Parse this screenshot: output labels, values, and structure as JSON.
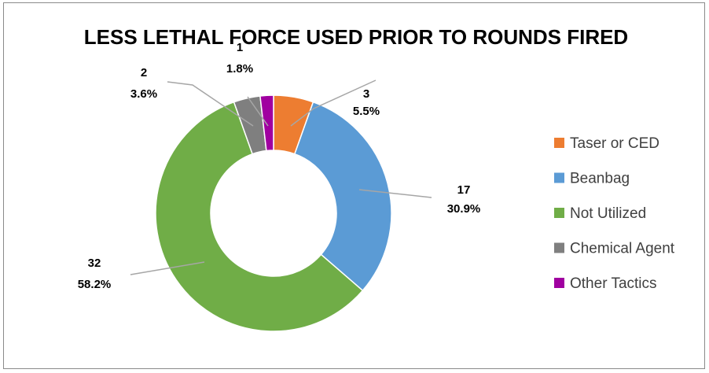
{
  "chart_data": {
    "type": "pie",
    "variant": "doughnut",
    "title": "LESS LETHAL FORCE USED PRIOR TO ROUNDS FIRED",
    "legend_position": "right",
    "categories": [
      "Taser or CED",
      "Beanbag",
      "Not Utilized",
      "Chemical Agent",
      "Other Tactics"
    ],
    "values": [
      3,
      17,
      32,
      2,
      1
    ],
    "percent_labels": [
      "5.5%",
      "30.9%",
      "58.2%",
      "3.6%",
      "1.8%"
    ],
    "count_labels": [
      "3",
      "17",
      "32",
      "2",
      "1"
    ],
    "colors": [
      "#ED7D31",
      "#5B9BD5",
      "#70AD47",
      "#7F7F7F",
      "#A000A0"
    ]
  }
}
